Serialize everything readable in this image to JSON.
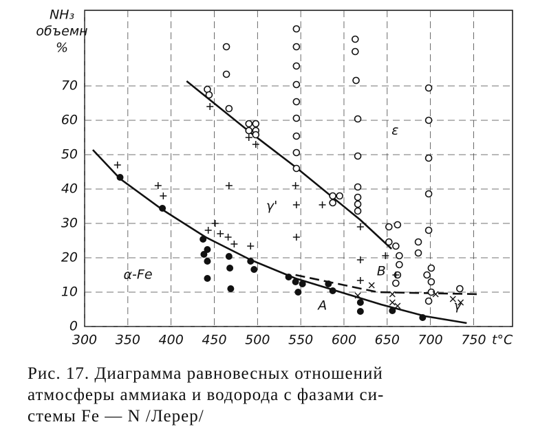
{
  "chart_data": {
    "type": "scatter",
    "ylabel": [
      "NH₃",
      "объемн",
      "%"
    ],
    "xlabel": "t°C",
    "xlim": [
      300,
      795
    ],
    "ylim": [
      0,
      92
    ],
    "xticks": [
      300,
      350,
      400,
      450,
      500,
      550,
      600,
      650,
      700,
      750
    ],
    "yticks": [
      0,
      10,
      20,
      30,
      40,
      50,
      60,
      70
    ],
    "grid": true,
    "series": [
      {
        "type": "line",
        "color": "#111",
        "dashed": false,
        "x": [
          309.5,
          341,
          390,
          440,
          492,
          544,
          591,
          643,
          694,
          742
        ],
        "values": [
          51.4,
          43,
          34,
          26,
          19.4,
          14,
          10.4,
          6.4,
          3,
          1
        ]
      },
      {
        "type": "line",
        "color": "#111",
        "dashed": false,
        "x": [
          418,
          492,
          544,
          619,
          655
        ],
        "values": [
          71.4,
          56.4,
          46.4,
          31,
          22.6
        ]
      },
      {
        "type": "line",
        "color": "#111",
        "dashed": true,
        "x": [
          544,
          639,
          758
        ],
        "values": [
          15,
          10,
          9.4
        ]
      },
      {
        "type": "scatter",
        "marker": "open-circle",
        "color": "#111",
        "x": [
          464,
          464,
          442,
          444,
          467,
          490,
          498,
          490,
          498,
          498,
          545,
          545,
          545,
          545,
          545,
          545,
          545,
          545,
          545,
          613,
          613,
          614,
          616,
          616,
          616,
          616,
          616,
          616,
          587,
          595,
          587,
          652,
          662,
          652,
          660,
          664,
          664,
          662,
          660,
          686,
          686,
          698,
          698,
          698,
          698,
          698,
          696,
          701,
          701,
          701,
          698,
          734
        ],
        "values": [
          81.4,
          73.4,
          69,
          67.4,
          63.4,
          59,
          59,
          57,
          57,
          55.8,
          86.6,
          81.4,
          75.8,
          70.4,
          65.4,
          60.6,
          55.4,
          50.6,
          46,
          83.6,
          80,
          71.6,
          60.4,
          49.6,
          40.6,
          37.6,
          35.6,
          33.6,
          38,
          38,
          36,
          29,
          29.6,
          24.6,
          23.4,
          20.6,
          18,
          15,
          12.6,
          24.6,
          21.4,
          69.4,
          60,
          49,
          38.6,
          28,
          15,
          17,
          13,
          10,
          7.4,
          11
        ]
      },
      {
        "type": "scatter",
        "marker": "filled-circle",
        "color": "#111",
        "x": [
          341,
          390,
          437,
          442,
          438,
          442,
          467,
          468,
          442,
          469,
          492,
          496,
          536,
          544,
          552,
          547,
          582,
          587,
          619,
          619,
          656,
          691
        ],
        "values": [
          43.4,
          34.4,
          25.4,
          22.4,
          21,
          19,
          20.4,
          17,
          14,
          11,
          19,
          16.6,
          14.4,
          13,
          12.4,
          10,
          12.4,
          10.4,
          7,
          4.4,
          4.6,
          2.6
        ]
      },
      {
        "type": "scatter",
        "marker": "plus",
        "color": "#111",
        "x": [
          338,
          385,
          391,
          445,
          443,
          451,
          457,
          466,
          473,
          490,
          498,
          492,
          544,
          545,
          545,
          575,
          619,
          619,
          619,
          660,
          648,
          467
        ],
        "values": [
          47,
          41,
          38,
          64,
          28,
          30,
          27,
          26,
          24,
          55,
          53,
          23.4,
          41,
          35.4,
          26,
          35.4,
          29,
          19.4,
          13.4,
          15,
          20.6,
          41
        ]
      },
      {
        "type": "scatter",
        "marker": "cross",
        "color": "#111",
        "x": [
          632,
          656,
          656,
          662,
          706,
          726,
          735,
          616
        ],
        "values": [
          12,
          9.4,
          7,
          6,
          9.4,
          8,
          7,
          9
        ]
      }
    ],
    "annotations": [
      {
        "text": "α-Fe",
        "x": 345,
        "y": 15
      },
      {
        "text": "γ'",
        "x": 510,
        "y": 35
      },
      {
        "text": "ε",
        "x": 655,
        "y": 57
      },
      {
        "text": "A",
        "x": 570,
        "y": 6
      },
      {
        "text": "B",
        "x": 638,
        "y": 16
      },
      {
        "text": "γ",
        "x": 727,
        "y": 6
      }
    ],
    "caption": [
      "Рис. 17. Диаграмма равновесных отношений",
      "атмосферы аммиака и водорода с фазами си-",
      "стемы Fe — N /Лерер/"
    ]
  }
}
